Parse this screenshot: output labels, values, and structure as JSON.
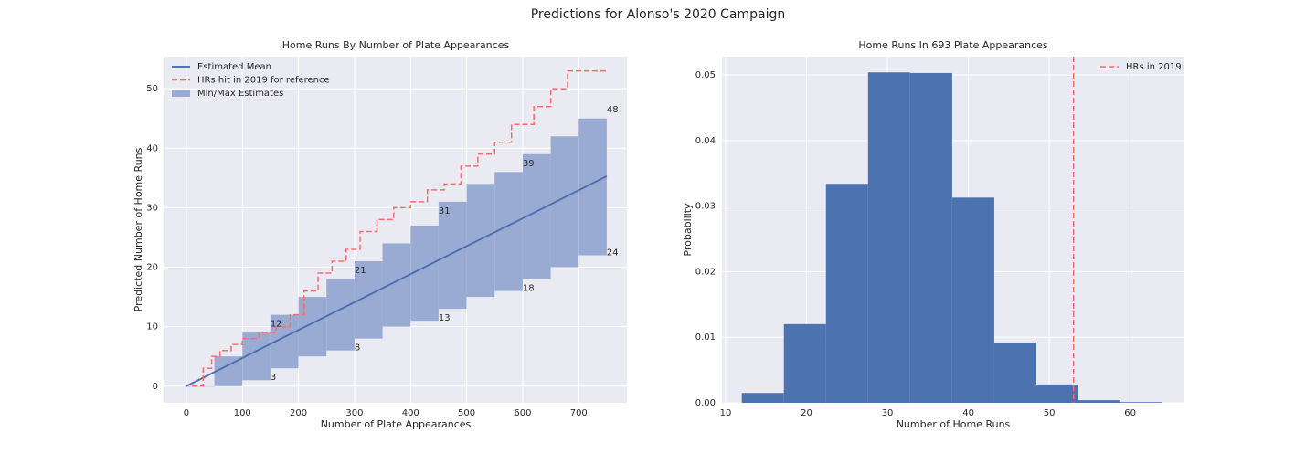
{
  "title": "Predictions for Alonso's 2020 Campaign",
  "chart_data": [
    {
      "type": "line",
      "title": "Home Runs By Number of Plate Appearances",
      "xlabel": "Number of Plate Appearances",
      "ylabel": "Predicted Number of Home Runs",
      "xlim": [
        -39,
        786
      ],
      "ylim": [
        -2.8,
        55.4
      ],
      "xticks": [
        0,
        100,
        200,
        300,
        400,
        500,
        600,
        700
      ],
      "yticks": [
        0,
        10,
        20,
        30,
        40,
        50
      ],
      "grid": true,
      "legend": "upper left",
      "band": {
        "name": "Min/Max Estimates",
        "color": "#9aabd3",
        "x": [
          0,
          50,
          100,
          150,
          200,
          250,
          300,
          350,
          400,
          450,
          500,
          550,
          600,
          650,
          700,
          750
        ],
        "lower": [
          0,
          0,
          1,
          3,
          5,
          6,
          8,
          10,
          11,
          13,
          15,
          16,
          18,
          20,
          22,
          24
        ],
        "upper": [
          0,
          5,
          9,
          12,
          15,
          18,
          21,
          24,
          27,
          31,
          34,
          36,
          39,
          42,
          45,
          48
        ]
      },
      "series": [
        {
          "name": "Estimated Mean",
          "color": "#4c72b0",
          "dash": false,
          "step": false,
          "x": [
            0,
            150,
            300,
            450,
            600,
            750
          ],
          "values": [
            0,
            7.1,
            14.1,
            21.2,
            28.2,
            35.3
          ]
        },
        {
          "name": "HRs hit in 2019 for reference",
          "color": "#ff6b6b",
          "dash": true,
          "step": true,
          "x": [
            10,
            30,
            45,
            60,
            80,
            100,
            130,
            160,
            185,
            210,
            235,
            260,
            285,
            310,
            340,
            370,
            400,
            430,
            460,
            490,
            520,
            550,
            580,
            620,
            650,
            680,
            750
          ],
          "values": [
            0,
            3,
            5,
            6,
            7,
            8,
            9,
            10,
            12,
            16,
            19,
            21,
            23,
            26,
            28,
            30,
            31,
            33,
            34,
            37,
            39,
            41,
            44,
            47,
            50,
            53,
            53
          ]
        }
      ],
      "annotations": [
        {
          "x": 150,
          "y": 3
        },
        {
          "x": 150,
          "y": 12
        },
        {
          "x": 300,
          "y": 8
        },
        {
          "x": 300,
          "y": 21
        },
        {
          "x": 450,
          "y": 13
        },
        {
          "x": 450,
          "y": 31
        },
        {
          "x": 600,
          "y": 18
        },
        {
          "x": 600,
          "y": 39
        },
        {
          "x": 750,
          "y": 24
        },
        {
          "x": 750,
          "y": 48
        }
      ]
    },
    {
      "type": "histogram",
      "title": "Home Runs In 693 Plate Appearances",
      "xlabel": "Number of Home Runs",
      "ylabel": "Probability",
      "xlim": [
        9.55,
        66.7
      ],
      "ylim": [
        0,
        0.0528
      ],
      "xticks": [
        10,
        20,
        30,
        40,
        50,
        60
      ],
      "yticks": [
        {
          "value": 0,
          "label": "0.00"
        },
        {
          "value": 0.01,
          "label": "0.01"
        },
        {
          "value": 0.02,
          "label": "0.02"
        },
        {
          "value": 0.03,
          "label": "0.03"
        },
        {
          "value": 0.04,
          "label": "0.04"
        },
        {
          "value": 0.05,
          "label": "0.05"
        }
      ],
      "grid": true,
      "legend": "upper right",
      "color": "#4c72b0",
      "bins": [
        12,
        17.2,
        22.4,
        27.6,
        32.8,
        38,
        43.2,
        48.4,
        53.6,
        58.8,
        64
      ],
      "values": [
        0.0015,
        0.012,
        0.0334,
        0.0504,
        0.0503,
        0.0313,
        0.0092,
        0.0028,
        0.0004,
        0.0001
      ],
      "vline": {
        "name": "HRs in 2019",
        "x": 53,
        "color": "#ff6b6b"
      }
    }
  ]
}
